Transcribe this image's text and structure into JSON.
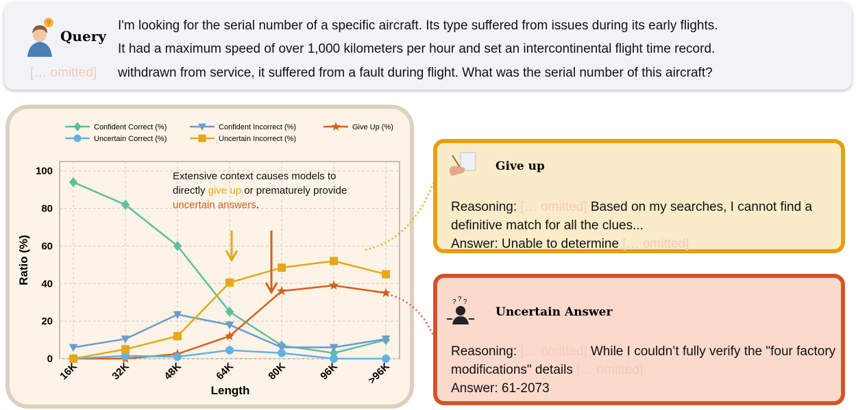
{
  "query": {
    "label": "Query",
    "lines": [
      "I'm looking for the serial number of a specific aircraft. Its type suffered from issues during its early flights.",
      "It had a maximum speed of over 1,000 kilometers per hour and set an intercontinental flight time record.",
      "withdrawn from service, it suffered from a fault during flight. What was the serial number of this aircraft?"
    ]
  },
  "omitted": "[… omitted]",
  "chart_data": {
    "type": "line",
    "x_label": "Length",
    "y_label": "Ratio (%)",
    "categories": [
      "16K",
      "32K",
      "48K",
      "64K",
      "80K",
      "96K",
      ">96K"
    ],
    "ylim": [
      0,
      105
    ],
    "yticks": [
      0,
      20,
      40,
      60,
      80,
      100
    ],
    "grid": true,
    "annotation": [
      [
        {
          "text": "Extensive context causes models to"
        }
      ],
      [
        {
          "text": "directly "
        },
        {
          "text": "give up",
          "color": "#e6a817"
        },
        {
          "text": " or prematurely provide"
        }
      ],
      [
        {
          "text": "uncertain answers",
          "color": "#d2601a"
        },
        {
          "text": "."
        }
      ]
    ],
    "series": [
      {
        "name": "Confident Correct (%)",
        "color": "#5dbf9f",
        "marker": "diamond",
        "values": [
          94,
          82,
          60,
          25,
          7,
          3,
          10
        ]
      },
      {
        "name": "Confident Incorrect (%)",
        "color": "#6b9bcf",
        "marker": "triangle",
        "values": [
          6,
          10.5,
          23.5,
          18,
          6,
          6,
          10.5
        ]
      },
      {
        "name": "Give Up (%)",
        "color": "#d2601a",
        "marker": "star",
        "values": [
          0,
          0,
          2.5,
          12,
          36,
          39,
          35
        ]
      },
      {
        "name": "Uncertain Correct (%)",
        "color": "#5fb3e3",
        "marker": "circle",
        "values": [
          0,
          1.5,
          1,
          4.5,
          3,
          0,
          0
        ]
      },
      {
        "name": "Uncertain Incorrect (%)",
        "color": "#e6a817",
        "marker": "square",
        "values": [
          0,
          5,
          12,
          40.5,
          48.5,
          52,
          45
        ]
      }
    ]
  },
  "give_up": {
    "title": "Give up",
    "reasoning_label": "Reasoning:",
    "reasoning": "Based on my searches, I cannot find a definitive match for all the clues...",
    "answer": "Answer: Unable to determine"
  },
  "uncertain": {
    "title": "Uncertain Answer",
    "reasoning_label": "Reasoning:",
    "reasoning": "While I couldn’t fully verify the \"four factory modifications\" details",
    "answer": "Answer: 61-2073"
  }
}
